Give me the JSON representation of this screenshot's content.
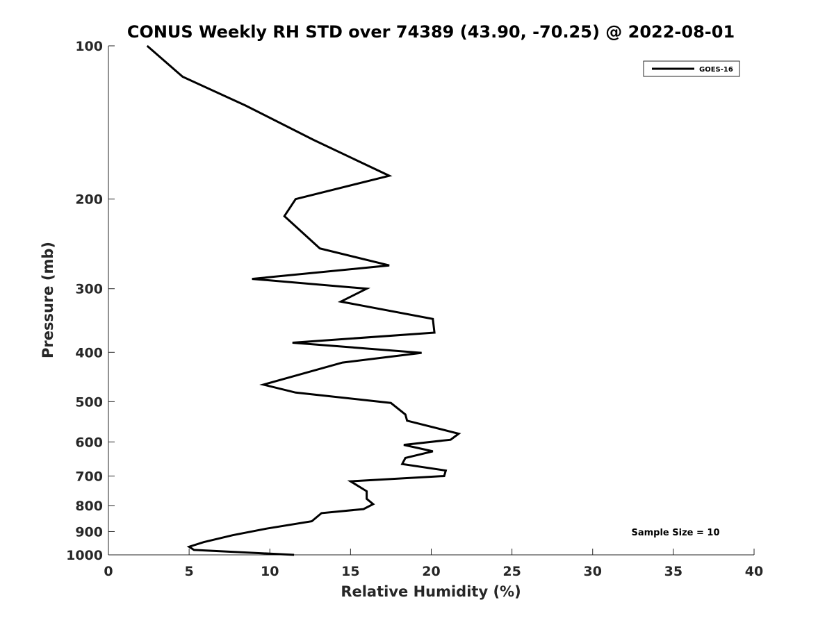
{
  "chart_data": {
    "type": "line",
    "title": "CONUS Weekly RH STD over 74389 (43.90, -70.25) @ 2022-08-01",
    "xlabel": "Relative Humidity (%)",
    "ylabel": "Pressure (mb)",
    "xlim": [
      0,
      40
    ],
    "ylim": [
      100,
      1000
    ],
    "y_scale": "log",
    "y_reversed": true,
    "x_ticks": [
      0,
      5,
      10,
      15,
      20,
      25,
      30,
      35,
      40
    ],
    "x_tick_labels": [
      "0",
      "5",
      "10",
      "15",
      "20",
      "25",
      "30",
      "35",
      "40"
    ],
    "y_ticks": [
      100,
      200,
      300,
      400,
      500,
      600,
      700,
      800,
      900,
      1000
    ],
    "y_tick_labels": [
      "100",
      "200",
      "300",
      "400",
      "500",
      "600",
      "700",
      "800",
      "900",
      "1000"
    ],
    "grid": false,
    "legend_position": "top-right",
    "series": [
      {
        "name": "GOES-16",
        "color": "#000000",
        "x": [
          2.4,
          4.6,
          8.5,
          12.7,
          17.4,
          11.6,
          10.9,
          13.1,
          17.4,
          8.9,
          16.0,
          14.4,
          20.1,
          20.2,
          11.4,
          19.4,
          14.5,
          9.6,
          11.6,
          17.5,
          18.4,
          18.5,
          21.7,
          21.2,
          18.3,
          20.1,
          18.4,
          18.2,
          20.9,
          20.8,
          15.0,
          16.0,
          16.0,
          16.4,
          15.8,
          13.2,
          12.6,
          9.8,
          7.7,
          5.9,
          5.0,
          5.3,
          11.5
        ],
        "y": [
          100,
          115,
          131,
          153,
          180,
          200,
          216,
          250,
          270,
          287,
          300,
          318,
          344,
          366,
          383,
          401,
          419,
          463,
          480,
          503,
          530,
          545,
          578,
          594,
          608,
          626,
          645,
          663,
          683,
          700,
          717,
          750,
          776,
          795,
          813,
          828,
          859,
          888,
          915,
          944,
          964,
          978,
          1000
        ]
      }
    ],
    "annotations": [
      "Sample Size = 10"
    ]
  }
}
